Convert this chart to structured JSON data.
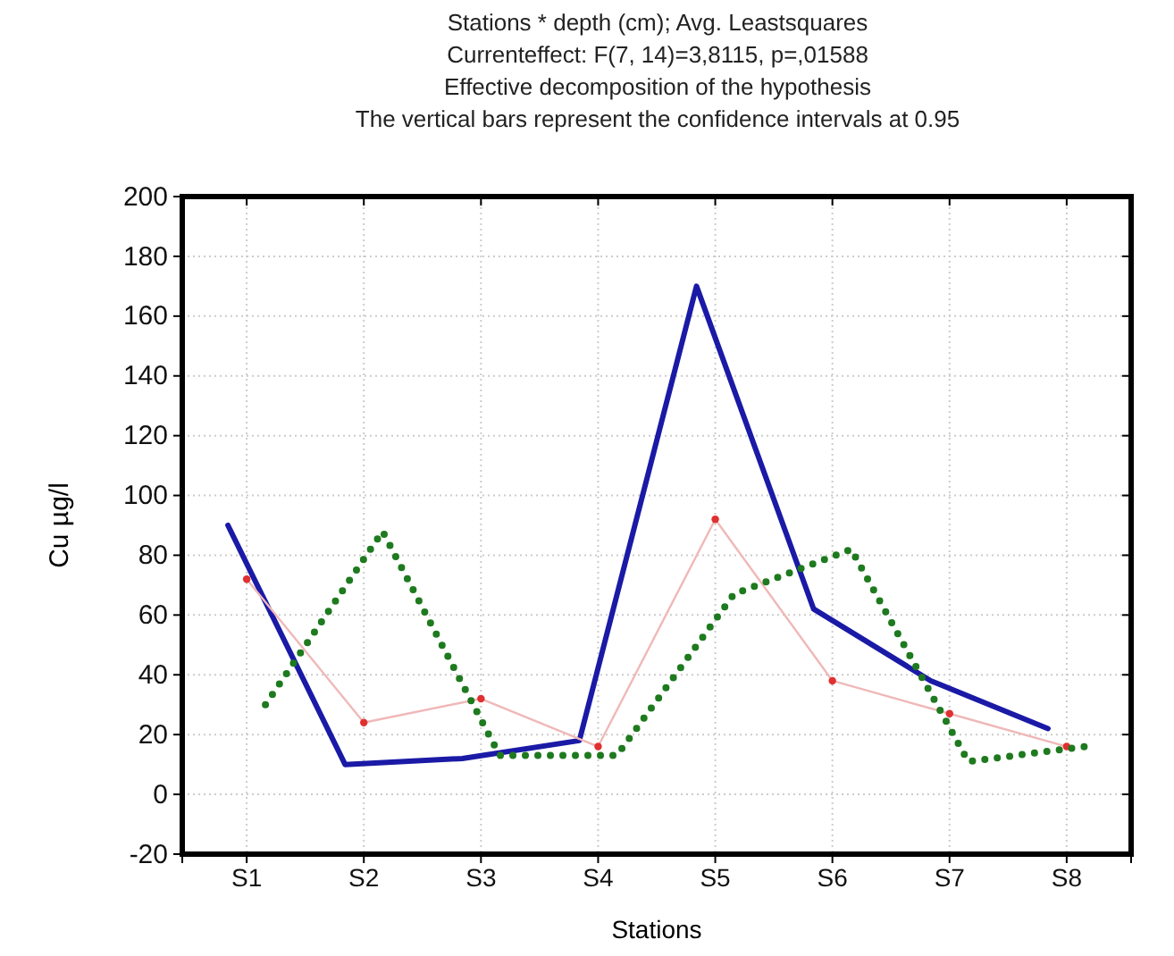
{
  "chart_data": {
    "type": "line",
    "title": "Stations * depth (cm); Avg. Leastsquares",
    "subtitle": "Currenteffect: F(7, 14)=3,8115, p=,01588",
    "annotations": [
      "Effective decomposition of the hypothesis",
      "The vertical bars represent the confidence intervals at 0.95"
    ],
    "xlabel": "Stations",
    "ylabel": "Cu µg/l",
    "categories": [
      "S1",
      "S2",
      "S3",
      "S4",
      "S5",
      "S6",
      "S7",
      "S8"
    ],
    "series": [
      {
        "color": "#1a1aa6",
        "line_style": "solid",
        "values": [
          90,
          10,
          12,
          18,
          170,
          62,
          38,
          22
        ]
      },
      {
        "color": "#f0b8b8",
        "line_style": "solid",
        "marker": "circle",
        "values": [
          72,
          24,
          32,
          16,
          92,
          38,
          27,
          16
        ]
      },
      {
        "color": "#1e7a1e",
        "line_style": "dotted",
        "values": [
          30,
          88,
          13,
          13,
          67,
          82,
          11,
          16
        ]
      }
    ],
    "ylim": [
      -20,
      200
    ],
    "yticks": [
      -20,
      0,
      20,
      40,
      60,
      80,
      100,
      120,
      140,
      160,
      180,
      200
    ],
    "grid": true
  }
}
